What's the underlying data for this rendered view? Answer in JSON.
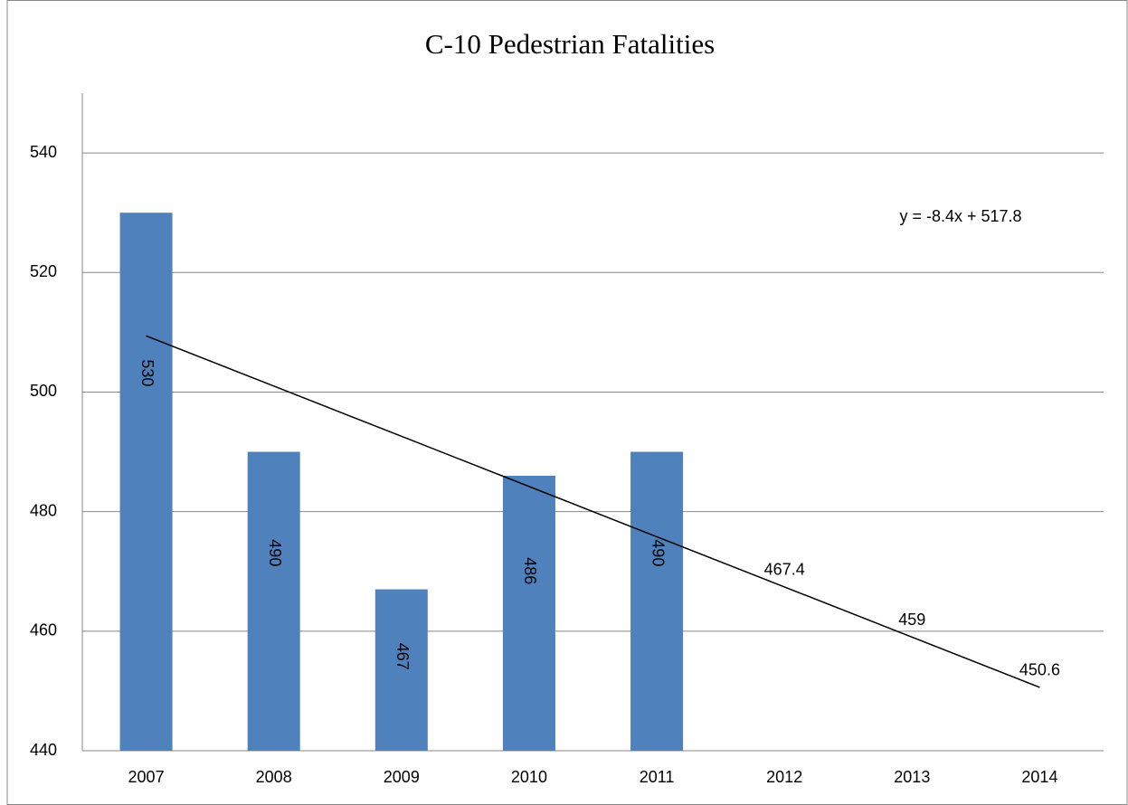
{
  "chart_data": {
    "type": "bar",
    "title": "C-10 Pedestrian Fatalities",
    "categories": [
      "2007",
      "2008",
      "2009",
      "2010",
      "2011",
      "2012",
      "2013",
      "2014"
    ],
    "series": [
      {
        "color": "#4f81bd",
        "values": [
          530,
          490,
          467,
          486,
          490,
          null,
          null,
          null
        ]
      }
    ],
    "trendline": {
      "equation": "y = -8.4x + 517.8",
      "color": "#000000",
      "values": [
        509.4,
        501,
        492.6,
        484.2,
        475.8,
        467.4,
        459,
        450.6
      ],
      "value_labels": [
        null,
        null,
        null,
        null,
        null,
        "467.4",
        "459",
        "450.6"
      ]
    },
    "ylim": [
      440,
      550
    ],
    "yticks": [
      440,
      460,
      480,
      500,
      520,
      540
    ],
    "grid": true
  }
}
